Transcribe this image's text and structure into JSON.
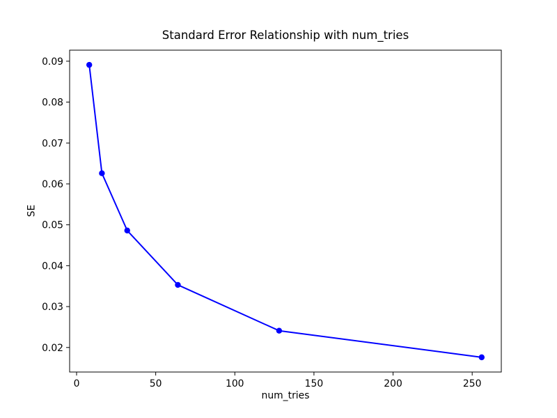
{
  "figure": {
    "background": "#ffffff"
  },
  "chart_data": {
    "type": "line",
    "title": "Standard Error Relationship with num_tries",
    "xlabel": "num_tries",
    "ylabel": "SE",
    "x": [
      8,
      16,
      32,
      64,
      128,
      256
    ],
    "y": [
      0.0891,
      0.0626,
      0.0486,
      0.0353,
      0.0241,
      0.0176
    ],
    "xlim": [
      -4.4,
      268.4
    ],
    "ylim": [
      0.014,
      0.0927
    ],
    "xticks": [
      0,
      50,
      100,
      150,
      200,
      250
    ],
    "yticks": [
      0.02,
      0.03,
      0.04,
      0.05,
      0.06,
      0.07,
      0.08,
      0.09
    ],
    "ytick_decimals": 2,
    "xtick_decimals": 0,
    "line_color": "#0000ff",
    "marker_color": "#0000ff",
    "marker": "o",
    "marker_radius": 4.2,
    "line_width": 2,
    "axis_color": "#000000",
    "grid": false,
    "legend_position": "none"
  }
}
